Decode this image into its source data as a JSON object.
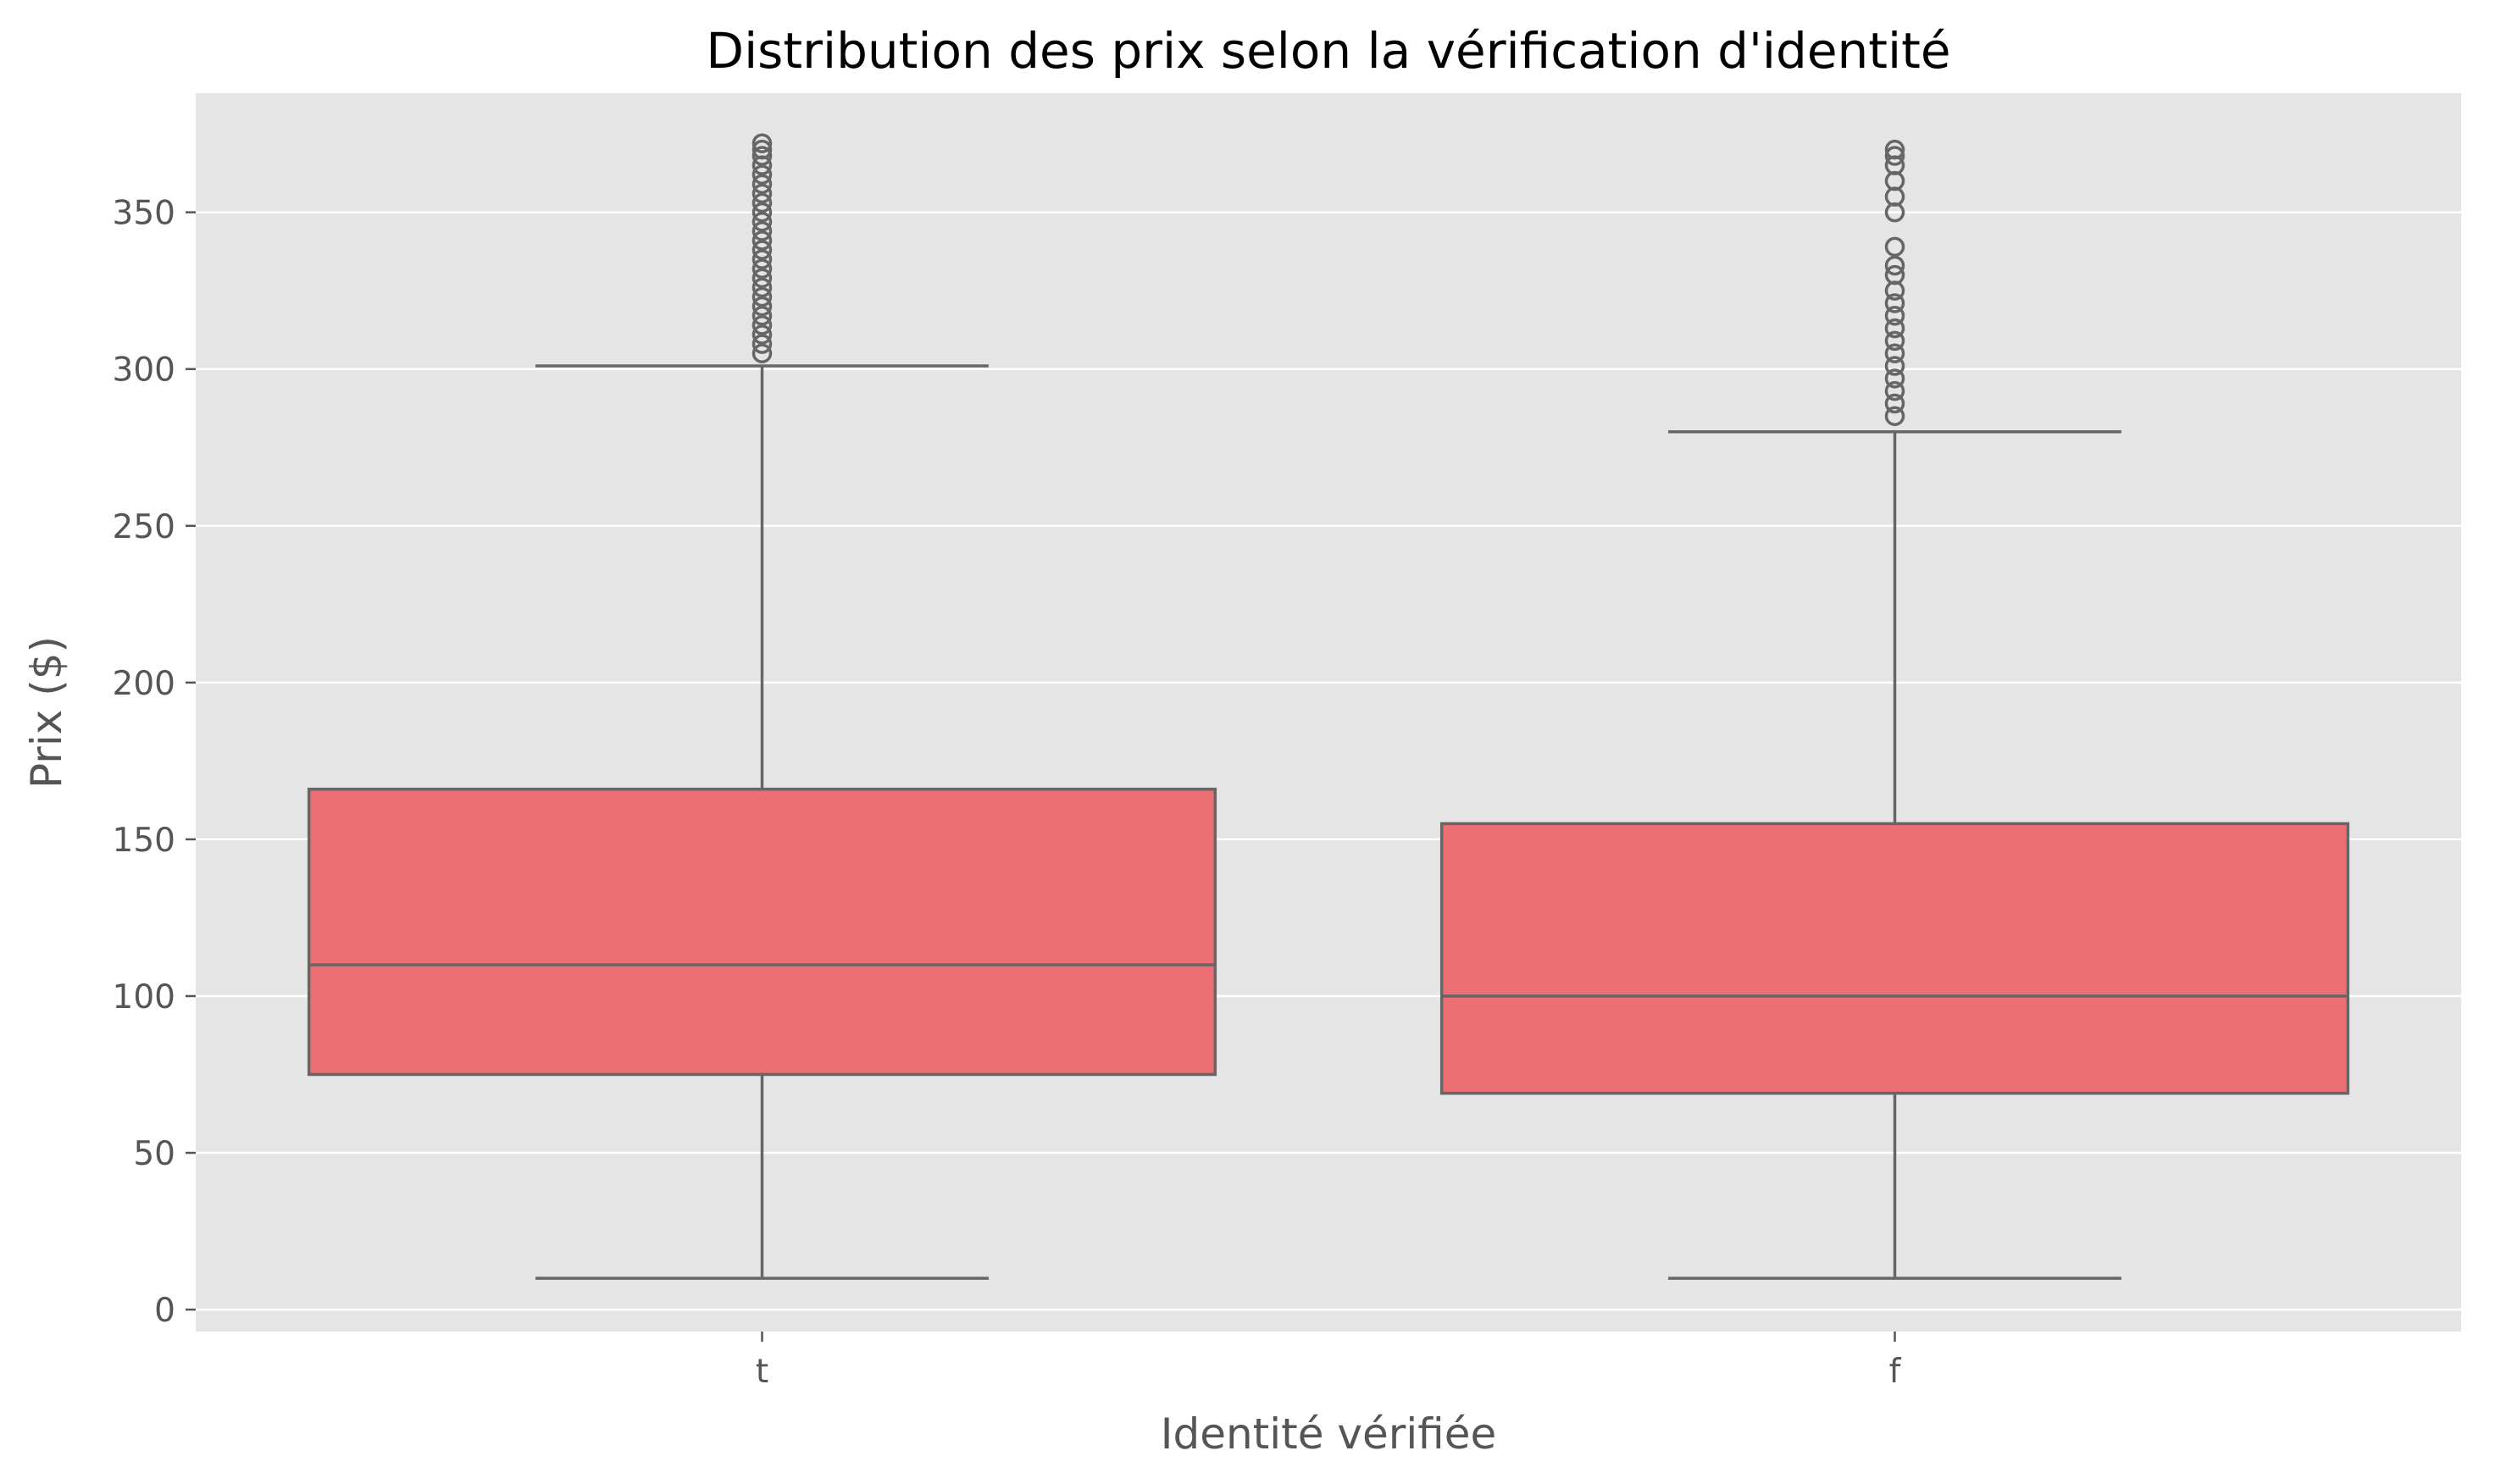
{
  "chart_data": {
    "type": "boxplot",
    "title": "Distribution des prix selon la vérification d'identité",
    "xlabel": "Identité vérifiée",
    "ylabel": "Prix ($)",
    "ylim": [
      -7,
      388
    ],
    "yticks": [
      0,
      50,
      100,
      150,
      200,
      250,
      300,
      350
    ],
    "grid": true,
    "legend": "none",
    "categories": [
      "t",
      "f"
    ],
    "boxes": [
      {
        "category": "t",
        "whisker_low": 10,
        "q1": 75,
        "median": 110,
        "q3": 166,
        "whisker_high": 301,
        "outliers": [
          305,
          308,
          311,
          314,
          317,
          320,
          323,
          326,
          329,
          332,
          335,
          338,
          341,
          344,
          347,
          350,
          353,
          356,
          359,
          362,
          365,
          368,
          370,
          372
        ]
      },
      {
        "category": "f",
        "whisker_low": 10,
        "q1": 69,
        "median": 100,
        "q3": 155,
        "whisker_high": 280,
        "outliers": [
          285,
          289,
          293,
          297,
          301,
          305,
          309,
          313,
          317,
          321,
          325,
          330,
          333,
          339,
          350,
          355,
          360,
          365,
          368,
          370
        ]
      }
    ],
    "colors": {
      "box_fill": "#EB6F73",
      "line": "#666666",
      "plot_background": "#E5E5E5",
      "grid": "#FFFFFF",
      "page_background": "#FFFFFF"
    }
  }
}
